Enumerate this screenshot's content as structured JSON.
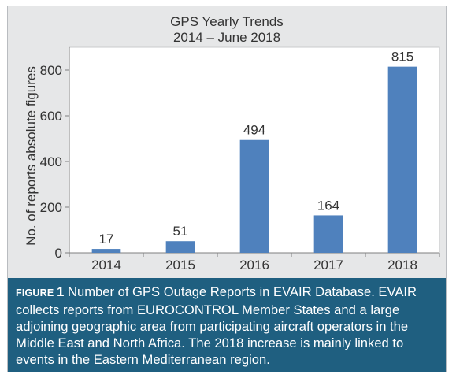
{
  "chart_data": {
    "type": "bar",
    "title": "GPS Yearly Trends",
    "subtitle": "2014 – June 2018",
    "xlabel": "",
    "ylabel": "No. of reports absolute figures",
    "categories": [
      "2014",
      "2015",
      "2016",
      "2017",
      "2018"
    ],
    "values": [
      17,
      51,
      494,
      164,
      815
    ],
    "data_labels": [
      "17",
      "51",
      "494",
      "164",
      "815"
    ],
    "ylim": [
      0,
      900
    ],
    "yticks": [
      0,
      200,
      400,
      600,
      800
    ],
    "grid": false,
    "bar_color": "#4f81bd"
  },
  "caption": {
    "label": "FIGURE",
    "number": "1",
    "text": "Number of GPS Outage Reports in EVAIR Database. EVAIR collects reports from EUROCONTROL Member States and a large adjoining geographic area from participating aircraft operators in the Middle East and North Africa. The 2018 increase is mainly linked to events in the Eastern Mediterranean region."
  }
}
